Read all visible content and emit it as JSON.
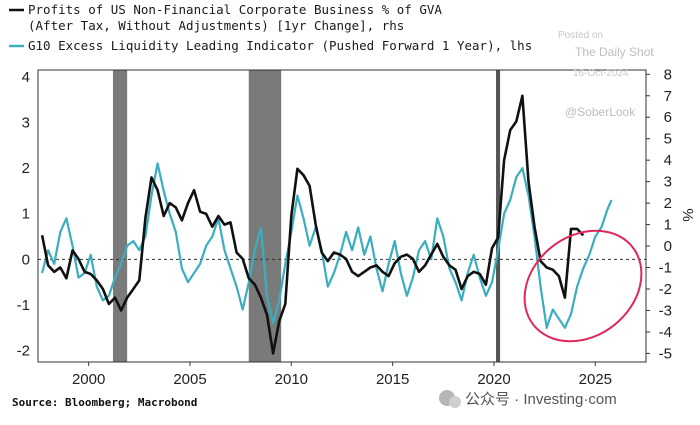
{
  "chart_data": {
    "type": "line",
    "title_lines": [],
    "legend": [
      {
        "lines": [
          "Profits of US Non-Financial Corporate Business % of GVA",
          "(After Tax, Without Adjustments) [1yr Change], rhs"
        ],
        "color": "#111111"
      },
      {
        "lines": [
          "G10 Excess Liquidity Leading Indicator (Pushed Forward 1 Year), lhs"
        ],
        "color": "#3aaebf"
      }
    ],
    "x_ticks": [
      "2000",
      "2005",
      "2010",
      "2015",
      "2020",
      "2025"
    ],
    "x_tick_values": [
      2000,
      2005,
      2010,
      2015,
      2020,
      2025
    ],
    "xlim": [
      1997.5,
      2027.5
    ],
    "left_axis": {
      "ticks": [
        "4",
        "3",
        "2",
        "1",
        "0",
        "-1",
        "-2"
      ],
      "tick_values": [
        4,
        3,
        2,
        1,
        0,
        -1,
        -2
      ],
      "ylim": [
        -2.25,
        4.15
      ]
    },
    "right_axis": {
      "ticks": [
        "8",
        "7",
        "6",
        "5",
        "4",
        "3",
        "2",
        "1",
        "0",
        "-1",
        "-2",
        "-3",
        "-4",
        "-5"
      ],
      "tick_values": [
        8,
        7,
        6,
        5,
        4,
        3,
        2,
        1,
        0,
        -1,
        -2,
        -3,
        -4,
        -5
      ],
      "ylim": [
        -5.4,
        8.2
      ],
      "unit_label": "%"
    },
    "recession_bands": [
      [
        2001.2,
        2001.9
      ],
      [
        2007.9,
        2009.5
      ],
      [
        2020.1,
        2020.3
      ]
    ],
    "zero_line": "dashed",
    "series": [
      {
        "axis": "lhs",
        "color": "#3aaebf",
        "x": [
          1997.7,
          1998.0,
          1998.3,
          1998.6,
          1998.9,
          1999.2,
          1999.5,
          1999.8,
          2000.1,
          2000.4,
          2000.7,
          2001.0,
          2001.3,
          2001.6,
          2001.9,
          2002.2,
          2002.5,
          2002.8,
          2003.1,
          2003.4,
          2003.7,
          2004.0,
          2004.3,
          2004.6,
          2004.9,
          2005.2,
          2005.5,
          2005.8,
          2006.1,
          2006.4,
          2006.7,
          2007.0,
          2007.3,
          2007.6,
          2007.9,
          2008.2,
          2008.5,
          2008.8,
          2009.1,
          2009.4,
          2009.7,
          2010.0,
          2010.3,
          2010.6,
          2010.9,
          2011.2,
          2011.5,
          2011.8,
          2012.1,
          2012.4,
          2012.7,
          2013.0,
          2013.3,
          2013.6,
          2013.9,
          2014.2,
          2014.5,
          2014.8,
          2015.1,
          2015.4,
          2015.7,
          2016.0,
          2016.3,
          2016.6,
          2016.9,
          2017.2,
          2017.5,
          2017.8,
          2018.1,
          2018.4,
          2018.7,
          2019.0,
          2019.3,
          2019.6,
          2019.9,
          2020.2,
          2020.5,
          2020.8,
          2021.1,
          2021.4,
          2021.7,
          2022.0,
          2022.3,
          2022.6,
          2022.9,
          2023.2,
          2023.5,
          2023.8,
          2024.1,
          2024.4,
          2024.7,
          2025.0,
          2025.3,
          2025.6,
          2025.8
        ],
        "values": [
          -0.3,
          0.2,
          -0.1,
          0.6,
          0.9,
          0.3,
          -0.4,
          -0.3,
          0.1,
          -0.6,
          -0.9,
          -0.8,
          -0.4,
          -0.1,
          0.3,
          0.4,
          0.2,
          0.5,
          1.4,
          2.1,
          1.5,
          1.0,
          0.6,
          -0.2,
          -0.5,
          -0.3,
          -0.1,
          0.3,
          0.5,
          0.9,
          0.2,
          -0.2,
          -0.6,
          -1.1,
          -0.5,
          0.2,
          0.7,
          -0.8,
          -1.4,
          -0.9,
          -0.1,
          0.6,
          1.4,
          0.9,
          0.3,
          0.7,
          0.2,
          -0.6,
          -0.3,
          0.1,
          0.6,
          0.2,
          0.7,
          0.1,
          0.5,
          -0.2,
          -0.7,
          -0.1,
          0.4,
          -0.3,
          -0.8,
          -0.4,
          0.2,
          0.4,
          0.0,
          0.9,
          0.5,
          -0.2,
          -0.5,
          -0.9,
          -0.3,
          0.1,
          -0.4,
          -0.8,
          -0.5,
          0.2,
          1.0,
          1.3,
          1.8,
          2.0,
          1.4,
          0.5,
          -0.6,
          -1.5,
          -1.1,
          -1.3,
          -1.5,
          -1.2,
          -0.6,
          -0.2,
          0.1,
          0.5,
          0.7,
          1.1,
          1.3
        ]
      },
      {
        "axis": "rhs",
        "color": "#111111",
        "x": [
          1997.7,
          1998.0,
          1998.3,
          1998.6,
          1998.9,
          1999.2,
          1999.5,
          1999.8,
          2000.1,
          2000.4,
          2000.7,
          2001.0,
          2001.3,
          2001.6,
          2001.9,
          2002.2,
          2002.5,
          2002.8,
          2003.1,
          2003.4,
          2003.7,
          2004.0,
          2004.3,
          2004.6,
          2004.9,
          2005.2,
          2005.5,
          2005.8,
          2006.1,
          2006.4,
          2006.7,
          2007.0,
          2007.3,
          2007.6,
          2007.9,
          2008.2,
          2008.5,
          2008.8,
          2009.1,
          2009.4,
          2009.7,
          2010.0,
          2010.3,
          2010.6,
          2010.9,
          2011.2,
          2011.5,
          2011.8,
          2012.1,
          2012.4,
          2012.7,
          2013.0,
          2013.3,
          2013.6,
          2013.9,
          2014.2,
          2014.5,
          2014.8,
          2015.1,
          2015.4,
          2015.7,
          2016.0,
          2016.3,
          2016.6,
          2016.9,
          2017.2,
          2017.5,
          2017.8,
          2018.1,
          2018.4,
          2018.7,
          2019.0,
          2019.3,
          2019.6,
          2019.9,
          2020.2,
          2020.5,
          2020.8,
          2021.1,
          2021.4,
          2021.7,
          2022.0,
          2022.3,
          2022.6,
          2022.9,
          2023.2,
          2023.5,
          2023.8,
          2024.1,
          2024.4
        ],
        "values": [
          0.5,
          -0.9,
          -1.2,
          -1.0,
          -1.5,
          -0.2,
          -0.6,
          -1.2,
          -1.3,
          -1.6,
          -2.0,
          -2.7,
          -2.4,
          -3.0,
          -2.4,
          -2.0,
          -1.6,
          1.3,
          3.2,
          2.6,
          1.4,
          2.0,
          1.8,
          1.2,
          2.0,
          2.6,
          1.6,
          1.5,
          0.9,
          1.4,
          1.0,
          1.1,
          -0.3,
          -0.6,
          -1.5,
          -1.8,
          -2.4,
          -3.2,
          -5.0,
          -3.5,
          -2.7,
          1.4,
          3.6,
          3.3,
          2.8,
          1.0,
          -0.3,
          -0.7,
          -0.3,
          -0.4,
          -0.6,
          -1.2,
          -1.4,
          -1.2,
          -1.0,
          -0.9,
          -1.2,
          -1.4,
          -0.8,
          -0.5,
          -0.4,
          -0.6,
          -1.2,
          -0.9,
          -0.4,
          0.1,
          -0.5,
          -0.9,
          -1.1,
          -2.0,
          -1.4,
          -1.2,
          -1.3,
          -1.8,
          -0.1,
          0.4,
          4.0,
          5.4,
          5.8,
          7.0,
          3.0,
          0.9,
          -0.7,
          -1.0,
          -1.1,
          -1.4,
          -2.4,
          0.8,
          0.8,
          0.5
        ]
      }
    ]
  },
  "source": "Source: Bloomberg; Macrobond",
  "watermark": {
    "posted_on": "Posted on",
    "publisher": "The Daily Shot",
    "date": "16-Oct-2024",
    "handle": "@SoberLook"
  },
  "footer_brand": "公众号 · Investing·com",
  "colors": {
    "black_series": "#111111",
    "teal_series": "#3aaebf",
    "recession": "#7a7a7a",
    "highlight_ellipse": "#e0285a"
  }
}
